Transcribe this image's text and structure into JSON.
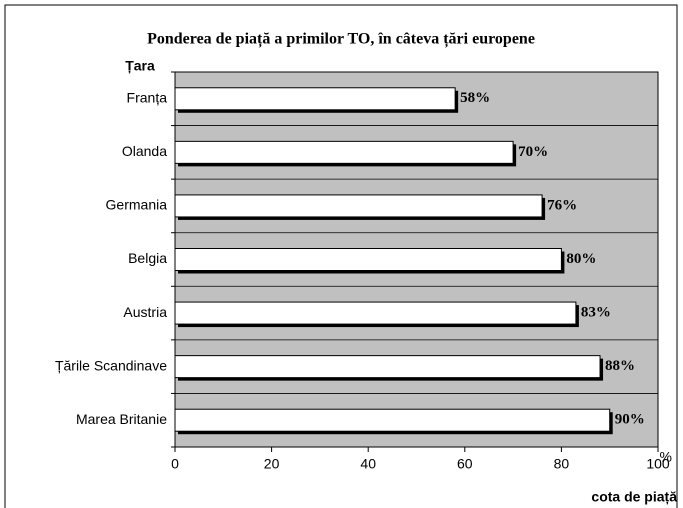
{
  "chart_data": {
    "type": "bar",
    "orientation": "horizontal",
    "title": "Ponderea de piață a primilor TO, în câteva țări europene",
    "ylabel": "Țara",
    "xlabel": "cota de piață",
    "x_unit": "%",
    "categories": [
      "Franța",
      "Olanda",
      "Germania",
      "Belgia",
      "Austria",
      "Țările Scandinave",
      "Marea Britanie"
    ],
    "values": [
      58,
      70,
      76,
      80,
      83,
      88,
      90
    ],
    "value_labels": [
      "58%",
      "70%",
      "76%",
      "80%",
      "83%",
      "88%",
      "90%"
    ],
    "color": "#ffffff",
    "background": "#c0c0c0",
    "xlim": [
      0,
      100
    ],
    "xticks": [
      0,
      20,
      40,
      60,
      80,
      100
    ],
    "grid": true
  }
}
